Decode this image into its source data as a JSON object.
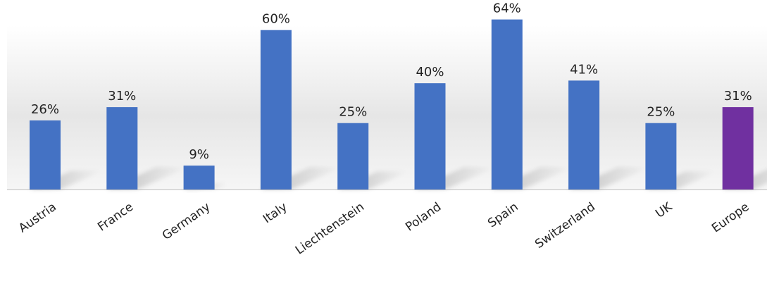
{
  "chart_data": {
    "type": "bar",
    "categories": [
      "Austria",
      "France",
      "Germany",
      "Italy",
      "Liechtenstein",
      "Poland",
      "Spain",
      "Switzerland",
      "UK",
      "Europe"
    ],
    "values": [
      26,
      31,
      9,
      60,
      25,
      40,
      64,
      41,
      25,
      31
    ],
    "value_labels": [
      "26%",
      "31%",
      "9%",
      "60%",
      "25%",
      "40%",
      "64%",
      "41%",
      "25%",
      "31%"
    ],
    "ylim": [
      0,
      70
    ],
    "grid": false,
    "legend": "none",
    "colors": {
      "bar": "#4472C4",
      "highlight": "#7030A0",
      "highlight_category": "Europe",
      "background_band": "#eeeeee"
    }
  }
}
